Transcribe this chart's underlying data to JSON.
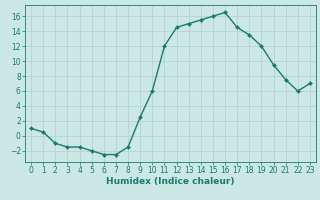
{
  "x": [
    0,
    1,
    2,
    3,
    4,
    5,
    6,
    7,
    8,
    9,
    10,
    11,
    12,
    13,
    14,
    15,
    16,
    17,
    18,
    19,
    20,
    21,
    22,
    23
  ],
  "y": [
    1.0,
    0.5,
    -1.0,
    -1.5,
    -1.5,
    -2.0,
    -2.5,
    -2.5,
    -1.5,
    2.5,
    6.0,
    12.0,
    14.5,
    15.0,
    15.5,
    16.0,
    16.5,
    14.5,
    13.5,
    12.0,
    9.5,
    7.5,
    6.0,
    7.0
  ],
  "xlabel": "Humidex (Indice chaleur)",
  "line_color": "#1a7a6e",
  "marker": "D",
  "marker_size": 2.0,
  "bg_color": "#cce8e4",
  "grid_color": "#b0d0cc",
  "xlim": [
    -0.5,
    23.5
  ],
  "ylim": [
    -3.5,
    17.5
  ],
  "yticks": [
    -2,
    0,
    2,
    4,
    6,
    8,
    10,
    12,
    14,
    16
  ],
  "xticks": [
    0,
    1,
    2,
    3,
    4,
    5,
    6,
    7,
    8,
    9,
    10,
    11,
    12,
    13,
    14,
    15,
    16,
    17,
    18,
    19,
    20,
    21,
    22,
    23
  ],
  "xlabel_fontsize": 6.5,
  "tick_fontsize": 5.5,
  "line_width": 1.0
}
